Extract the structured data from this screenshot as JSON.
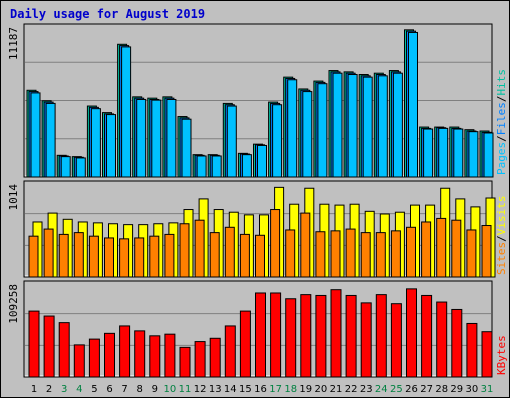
{
  "title": "Daily usage for August 2019",
  "colors": {
    "pages": "#00c0ff",
    "files": "#0080ff",
    "hits": "#00c0a0",
    "sites": "#ff8000",
    "visits": "#ffff00",
    "kbytes": "#ff0000",
    "weekend_label": "#008040",
    "weekday_label": "#000000",
    "slash": "#000000"
  },
  "chart_data": {
    "type": "bar",
    "categories": [
      "1",
      "2",
      "3",
      "4",
      "5",
      "6",
      "7",
      "8",
      "9",
      "10",
      "11",
      "12",
      "13",
      "14",
      "15",
      "16",
      "17",
      "18",
      "19",
      "20",
      "21",
      "22",
      "23",
      "24",
      "25",
      "26",
      "27",
      "28",
      "29",
      "30",
      "31"
    ],
    "weekend_days": [
      "3",
      "4",
      "10",
      "11",
      "17",
      "18",
      "24",
      "25",
      "31"
    ],
    "panels": [
      {
        "id": "hits-files-pages",
        "max_label": "11187",
        "ymax": 11187,
        "legend": [
          {
            "text": "Pages",
            "color": "#00c0ff"
          },
          {
            "text": "Files",
            "color": "#0080ff"
          },
          {
            "text": "Hits",
            "color": "#00c0a0"
          }
        ],
        "series": [
          {
            "name": "Hits",
            "color": "#00c0a0",
            "values": [
              6600,
              5800,
              1650,
              1550,
              5400,
              4900,
              10100,
              6100,
              6000,
              6100,
              4600,
              1700,
              1700,
              5600,
              1800,
              2500,
              5700,
              7600,
              6700,
              7300,
              8100,
              8000,
              7800,
              7900,
              8100,
              11200,
              3800,
              3800,
              3800,
              3600,
              3500
            ]
          },
          {
            "name": "Files",
            "color": "#0080ff",
            "values": [
              6500,
              5700,
              1600,
              1500,
              5300,
              4800,
              10000,
              6000,
              5900,
              6000,
              4500,
              1650,
              1650,
              5500,
              1750,
              2450,
              5600,
              7500,
              6600,
              7200,
              8000,
              7900,
              7700,
              7800,
              8000,
              11100,
              3700,
              3750,
              3700,
              3500,
              3400
            ]
          },
          {
            "name": "Pages",
            "color": "#00c0ff",
            "values": [
              6400,
              5600,
              1550,
              1450,
              5200,
              4750,
              9900,
              5900,
              5850,
              5900,
              4400,
              1600,
              1600,
              5400,
              1700,
              2400,
              5500,
              7400,
              6500,
              7100,
              7900,
              7800,
              7600,
              7700,
              7900,
              11000,
              3650,
              3700,
              3650,
              3450,
              3350
            ]
          }
        ]
      },
      {
        "id": "visits-sites",
        "max_label": "1014",
        "ymax": 1014,
        "legend": [
          {
            "text": "Sites",
            "color": "#ff8000"
          },
          {
            "text": "Visits",
            "color": "#ffff00"
          }
        ],
        "series": [
          {
            "name": "Visits",
            "color": "#ffff00",
            "values": [
              620,
              720,
              650,
              620,
              610,
              600,
              590,
              590,
              600,
              610,
              760,
              880,
              760,
              730,
              700,
              700,
              1010,
              820,
              1000,
              820,
              810,
              820,
              740,
              710,
              730,
              810,
              810,
              1000,
              880,
              790,
              890
            ]
          },
          {
            "name": "Sites",
            "color": "#ff8000",
            "values": [
              460,
              540,
              480,
              500,
              460,
              440,
              430,
              440,
              460,
              480,
              600,
              640,
              500,
              560,
              480,
              470,
              760,
              530,
              720,
              510,
              520,
              540,
              500,
              500,
              520,
              560,
              620,
              660,
              640,
              530,
              580
            ]
          }
        ]
      },
      {
        "id": "kbytes",
        "max_label": "109258",
        "ymax": 109258,
        "legend": [
          {
            "text": "KBytes",
            "color": "#ff0000"
          }
        ],
        "series": [
          {
            "name": "KBytes",
            "color": "#ff0000",
            "values": [
              80000,
              74000,
              66000,
              39000,
              46000,
              53000,
              62000,
              56000,
              50000,
              52000,
              36000,
              43000,
              47000,
              62000,
              80000,
              102000,
              102000,
              95000,
              100000,
              99000,
              106000,
              99000,
              90000,
              100000,
              89000,
              107000,
              99000,
              91000,
              82000,
              65000,
              55000
            ]
          }
        ]
      }
    ]
  }
}
